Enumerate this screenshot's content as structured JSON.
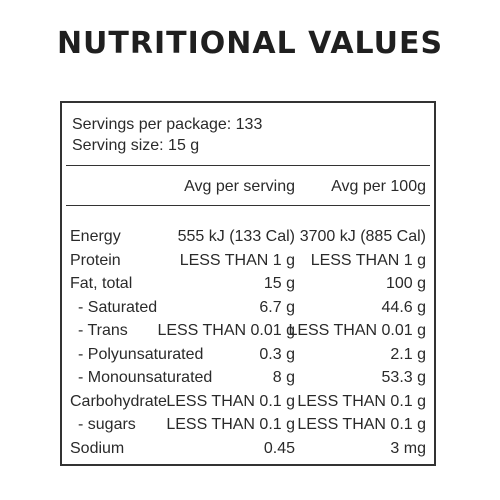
{
  "title": "NUTRITIONAL VALUES",
  "servings_per_package": "Servings per package: 133",
  "serving_size": "Serving size: 15 g",
  "columns": {
    "per_serving": "Avg per serving",
    "per_100g": "Avg per 100g"
  },
  "rows": [
    {
      "label": "Energy",
      "serving": "555 kJ (133 Cal)",
      "per100": "3700 kJ (885 Cal)"
    },
    {
      "label": "Protein",
      "serving": "LESS THAN 1 g",
      "per100": "LESS THAN 1 g"
    },
    {
      "label": "Fat, total",
      "serving": "15 g",
      "per100": "100 g"
    },
    {
      "label": "- Saturated",
      "serving": "6.7 g",
      "per100": "44.6 g"
    },
    {
      "label": "- Trans",
      "serving": "LESS THAN 0.01 g",
      "per100": "LESS THAN 0.01 g"
    },
    {
      "label": "- Polyunsaturated",
      "serving": "0.3 g",
      "per100": "2.1 g"
    },
    {
      "label": "- Monounsaturated",
      "serving": "8 g",
      "per100": "53.3 g"
    },
    {
      "label": "Carbohydrate",
      "serving": "LESS THAN 0.1 g",
      "per100": "LESS THAN 0.1 g"
    },
    {
      "label": "- sugars",
      "serving": "LESS THAN 0.1 g",
      "per100": "LESS THAN 0.1 g"
    },
    {
      "label": "Sodium",
      "serving": "0.45",
      "per100": "3 mg"
    }
  ]
}
